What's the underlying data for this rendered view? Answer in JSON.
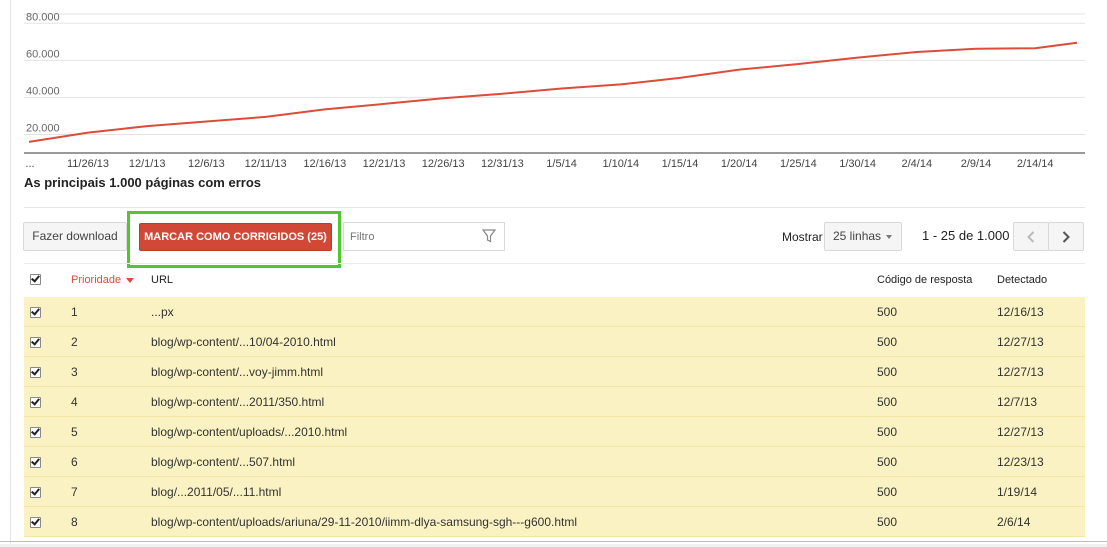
{
  "chart_data": {
    "type": "line",
    "title": "",
    "xlabel": "",
    "ylabel": "",
    "ylim": [
      10000,
      85000
    ],
    "y_ticks": [
      "20.000",
      "40.000",
      "60.000",
      "80.000"
    ],
    "y_tick_values": [
      20000,
      40000,
      60000,
      80000
    ],
    "x_ticks": [
      "...",
      "11/26/13",
      "12/1/13",
      "12/6/13",
      "12/11/13",
      "12/16/13",
      "12/21/13",
      "12/26/13",
      "12/31/13",
      "1/5/14",
      "1/10/14",
      "1/15/14",
      "1/20/14",
      "1/25/14",
      "1/30/14",
      "2/4/14",
      "2/9/14",
      "2/14/14"
    ],
    "series": [
      {
        "color": "#dd4b39",
        "x": [
          "11/21/13",
          "11/26/13",
          "12/1/13",
          "12/6/13",
          "12/11/13",
          "12/16/13",
          "12/21/13",
          "12/26/13",
          "12/31/13",
          "1/5/14",
          "1/10/14",
          "1/15/14",
          "1/20/14",
          "1/25/14",
          "1/30/14",
          "2/4/14",
          "2/9/14",
          "2/14/14",
          "2/18/14"
        ],
        "values": [
          16000,
          21000,
          24500,
          27000,
          29500,
          33500,
          36500,
          39500,
          42000,
          44800,
          47000,
          50500,
          55000,
          58000,
          61500,
          64500,
          66300,
          66500,
          69500
        ]
      }
    ]
  },
  "section_title": "As principais 1.000 páginas com erros",
  "toolbar": {
    "download_label": "Fazer download",
    "mark_fixed_label": "MARCAR COMO CORRIGIDOS (25)",
    "filter_placeholder": "Filtro",
    "show_label": "Mostrar",
    "rows_option": "25 linhas",
    "pagination_text": "1 - 25 de 1.000"
  },
  "colors": {
    "accent_red": "#dd4b39",
    "highlight_green": "#4fc82b",
    "row_highlight": "#faf2c2"
  },
  "table": {
    "headers": {
      "priority": "Prioridade",
      "url": "URL",
      "response_code": "Código de resposta",
      "detected": "Detectado"
    },
    "rows": [
      {
        "priority": "1",
        "url": "...px",
        "code": "500",
        "detected": "12/16/13"
      },
      {
        "priority": "2",
        "url": "blog/wp-content/...10/04-2010.html",
        "code": "500",
        "detected": "12/27/13"
      },
      {
        "priority": "3",
        "url": "blog/wp-content/...voy-jimm.html",
        "code": "500",
        "detected": "12/27/13"
      },
      {
        "priority": "4",
        "url": "blog/wp-content/...2011/350.html",
        "code": "500",
        "detected": "12/7/13"
      },
      {
        "priority": "5",
        "url": "blog/wp-content/uploads/...2010.html",
        "code": "500",
        "detected": "12/27/13"
      },
      {
        "priority": "6",
        "url": "blog/wp-content/...507.html",
        "code": "500",
        "detected": "12/23/13"
      },
      {
        "priority": "7",
        "url": "blog/...2011/05/...11.html",
        "code": "500",
        "detected": "1/19/14"
      },
      {
        "priority": "8",
        "url": "blog/wp-content/uploads/ariuna/29-11-2010/iimm-dlya-samsung-sgh---g600.html",
        "code": "500",
        "detected": "2/6/14"
      }
    ]
  }
}
